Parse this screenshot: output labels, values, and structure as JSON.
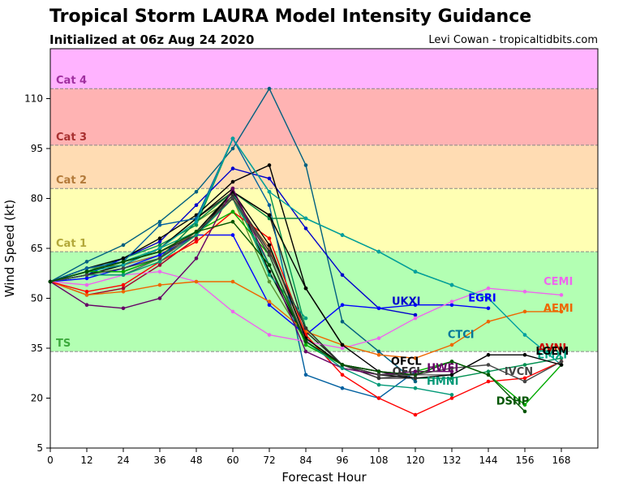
{
  "header": {
    "title": "Tropical Storm LAURA Model Intensity Guidance",
    "subtitle": "Initialized at 06z Aug 24 2020",
    "credit": "Levi Cowan - tropicaltidbits.com"
  },
  "chart_data": {
    "type": "line",
    "title": "Tropical Storm LAURA Model Intensity Guidance",
    "subtitle": "Initialized at 06z Aug 24 2020",
    "xlabel": "Forecast Hour",
    "ylabel": "Wind Speed (kt)",
    "xlim": [
      0,
      180
    ],
    "ylim": [
      5,
      125
    ],
    "xticks": [
      0,
      12,
      24,
      36,
      48,
      60,
      72,
      84,
      96,
      108,
      120,
      132,
      144,
      156,
      168
    ],
    "yticks": [
      5,
      20,
      35,
      50,
      65,
      80,
      95,
      110
    ],
    "grid": false,
    "bands": [
      {
        "label": "TS",
        "from": 34,
        "to": 64,
        "fill": "#b3ffb3",
        "text_color": "#3daa3d"
      },
      {
        "label": "Cat 1",
        "from": 64,
        "to": 83,
        "fill": "#ffffb3",
        "text_color": "#b3a83a"
      },
      {
        "label": "Cat 2",
        "from": 83,
        "to": 96,
        "fill": "#ffdcb3",
        "text_color": "#b37a3a"
      },
      {
        "label": "Cat 3",
        "from": 96,
        "to": 113,
        "fill": "#ffb3b3",
        "text_color": "#a83030"
      },
      {
        "label": "Cat 4",
        "from": 113,
        "to": 125,
        "fill": "#ffb3ff",
        "text_color": "#a030a0"
      }
    ],
    "series": [
      {
        "name": "",
        "color": "#006080",
        "x": [
          0,
          12,
          24,
          36,
          48,
          60,
          72,
          84,
          96,
          108,
          120
        ],
        "y": [
          55,
          61,
          66,
          73,
          82,
          95,
          113,
          90,
          43,
          34,
          25
        ]
      },
      {
        "name": "",
        "color": "#009050",
        "x": [
          0,
          12,
          24,
          36,
          48,
          60,
          72,
          84,
          96,
          108,
          120,
          132,
          144,
          156,
          168
        ],
        "y": [
          55,
          58,
          62,
          66,
          72,
          98,
          82,
          41,
          30,
          28,
          26,
          26,
          28,
          30,
          32
        ]
      },
      {
        "name": "",
        "color": "#5a9030",
        "x": [
          0,
          12,
          24,
          36,
          48,
          60,
          72,
          84,
          96
        ],
        "y": [
          55,
          59,
          60,
          65,
          73,
          80,
          55,
          37,
          30
        ]
      },
      {
        "name": "",
        "color": "#a06040",
        "x": [
          0,
          12,
          24,
          36,
          48,
          60,
          72,
          84,
          96,
          108,
          120
        ],
        "y": [
          55,
          57,
          60,
          63,
          70,
          80,
          65,
          38,
          30,
          27,
          27
        ]
      },
      {
        "name": "UKXI",
        "color": "#0000cc",
        "x": [
          0,
          12,
          24,
          36,
          48,
          60,
          72,
          84,
          96,
          108,
          120
        ],
        "y": [
          55,
          57,
          62,
          67,
          78,
          89,
          86,
          71,
          57,
          47,
          45
        ]
      },
      {
        "name": "EGRI",
        "color": "#0000ff",
        "x": [
          0,
          12,
          24,
          36,
          48,
          60,
          72,
          84,
          96,
          108,
          120,
          132,
          144
        ],
        "y": [
          55,
          56,
          59,
          63,
          69,
          69,
          48,
          39,
          48,
          47,
          48,
          48,
          47
        ]
      },
      {
        "name": "",
        "color": "#000000",
        "x": [
          0,
          12,
          24,
          36,
          48,
          60,
          72,
          84,
          96
        ],
        "y": [
          55,
          59,
          62,
          68,
          75,
          85,
          90,
          53,
          36
        ]
      },
      {
        "name": "",
        "color": "#202020",
        "x": [
          0,
          12,
          24,
          36,
          48,
          60,
          72,
          84,
          96,
          108
        ],
        "y": [
          55,
          58,
          60,
          65,
          74,
          82,
          75,
          40,
          30,
          28
        ]
      },
      {
        "name": "",
        "color": "#000000",
        "x": [
          0,
          12,
          24,
          36,
          48,
          60,
          72,
          84,
          96,
          108,
          120
        ],
        "y": [
          55,
          57,
          60,
          65,
          74,
          83,
          58,
          37,
          30,
          28,
          26
        ]
      },
      {
        "name": "",
        "color": "#00a080",
        "x": [
          0,
          12,
          24,
          36,
          48,
          60,
          72,
          84
        ],
        "y": [
          55,
          58,
          61,
          65,
          70,
          82,
          57,
          44
        ]
      },
      {
        "name": "",
        "color": "#0060a0",
        "x": [
          0,
          12,
          24,
          36,
          48,
          60,
          72,
          84,
          96,
          108,
          120
        ],
        "y": [
          55,
          59,
          61,
          72,
          74,
          98,
          78,
          27,
          23,
          20,
          28
        ]
      },
      {
        "name": "",
        "color": "#a00030",
        "x": [
          0,
          12,
          24,
          36,
          48
        ],
        "y": [
          55,
          51,
          53,
          60,
          68
        ]
      },
      {
        "name": "",
        "color": "#606060",
        "x": [
          0,
          12,
          24,
          36,
          48,
          60,
          72,
          84,
          96,
          108,
          120,
          132
        ],
        "y": [
          55,
          57,
          57,
          62,
          69,
          81,
          63,
          37,
          30,
          26,
          27,
          27
        ]
      },
      {
        "name": "",
        "color": "#008040",
        "x": [
          0,
          12,
          24,
          36,
          48,
          60,
          72,
          84,
          96,
          108,
          120,
          132
        ],
        "y": [
          55,
          58,
          58,
          62,
          73,
          82,
          74,
          74,
          69,
          64,
          58,
          54
        ]
      },
      {
        "name": "CEMI",
        "color": "#ee66ee",
        "x": [
          0,
          12,
          24,
          36,
          48,
          60,
          72,
          84,
          96,
          108,
          120,
          132,
          144,
          156,
          168
        ],
        "y": [
          55,
          54,
          57,
          58,
          55,
          46,
          39,
          37,
          35,
          38,
          44,
          49,
          53,
          52,
          51
        ]
      },
      {
        "name": "AEMI",
        "color": "#ee6600",
        "x": [
          0,
          12,
          24,
          36,
          48,
          60,
          72,
          84,
          96,
          108,
          120,
          132,
          144,
          156,
          168
        ],
        "y": [
          55,
          51,
          52,
          54,
          55,
          55,
          49,
          40,
          36,
          33,
          32,
          36,
          43,
          46,
          46
        ]
      },
      {
        "name": "CTCI",
        "color": "#00a0a0",
        "x": [
          0,
          12,
          24,
          36,
          48,
          60,
          72,
          84,
          96,
          108,
          120,
          132,
          144,
          156,
          168
        ],
        "y": [
          55,
          58,
          60,
          65,
          73,
          98,
          82,
          74,
          69,
          64,
          58,
          54,
          50,
          39,
          30
        ]
      },
      {
        "name": "AVNI",
        "color": "#ff0000",
        "x": [
          0,
          12,
          24,
          36,
          48,
          60,
          72,
          84,
          96,
          108,
          120,
          132,
          144,
          156,
          168
        ],
        "y": [
          55,
          52,
          54,
          61,
          67,
          76,
          68,
          39,
          27,
          20,
          15,
          20,
          25,
          26,
          31
        ]
      },
      {
        "name": "EMXI",
        "color": "#00aa00",
        "x": [
          0,
          12,
          24,
          36,
          48,
          60,
          72,
          84,
          96,
          108,
          120,
          132,
          144,
          156,
          168
        ],
        "y": [
          55,
          58,
          58,
          62,
          70,
          76,
          63,
          36,
          30,
          27,
          28,
          31,
          27,
          18,
          30
        ]
      },
      {
        "name": "LGEM",
        "color": "#000000",
        "x": [
          0,
          12,
          24,
          36,
          48,
          60,
          72,
          84,
          96,
          108,
          120,
          132,
          144,
          156,
          168
        ],
        "y": [
          55,
          58,
          61,
          64,
          70,
          82,
          66,
          38,
          30,
          27,
          26,
          27,
          33,
          33,
          30
        ]
      },
      {
        "name": "OFCL",
        "color": "#000000",
        "x": [
          0,
          12,
          24,
          36,
          48,
          60,
          72,
          84,
          96,
          108,
          120
        ],
        "y": [
          55,
          58,
          61,
          64,
          69,
          82,
          75,
          53,
          36,
          28,
          27
        ]
      },
      {
        "name": "OFCI",
        "color": "#333333",
        "x": [
          0,
          12,
          24,
          36,
          48,
          60,
          72,
          84,
          96,
          108,
          120
        ],
        "y": [
          55,
          58,
          61,
          64,
          69,
          81,
          64,
          41,
          30,
          26,
          26
        ]
      },
      {
        "name": "HWFI",
        "color": "#660066",
        "x": [
          0,
          12,
          24,
          36,
          48,
          60,
          72,
          84,
          96,
          108,
          120,
          132
        ],
        "y": [
          55,
          48,
          47,
          50,
          62,
          83,
          60,
          34,
          29,
          27,
          28,
          28
        ]
      },
      {
        "name": "HMNI",
        "color": "#009977",
        "x": [
          0,
          12,
          24,
          36,
          48,
          60,
          72,
          84,
          96,
          108,
          120,
          132
        ],
        "y": [
          55,
          57,
          57,
          61,
          69,
          80,
          60,
          37,
          29,
          24,
          23,
          21
        ]
      },
      {
        "name": "IVCN",
        "color": "#444444",
        "x": [
          0,
          12,
          24,
          36,
          48,
          60,
          72,
          84,
          96,
          108,
          120,
          132,
          144,
          156,
          168
        ],
        "y": [
          55,
          57,
          59,
          62,
          70,
          80,
          63,
          37,
          30,
          27,
          27,
          29,
          30,
          25,
          31
        ]
      },
      {
        "name": "DSHP",
        "color": "#005500",
        "x": [
          0,
          12,
          24,
          36,
          48,
          60,
          72,
          84,
          96,
          108,
          120,
          132,
          144,
          156
        ],
        "y": [
          55,
          58,
          61,
          64,
          70,
          73,
          60,
          37,
          30,
          28,
          27,
          31,
          27,
          16
        ]
      }
    ],
    "labels": [
      {
        "text": "CEMI",
        "x": 167,
        "y": 54,
        "color": "#ee66ee"
      },
      {
        "text": "AEMI",
        "x": 167,
        "y": 46,
        "color": "#ee6600"
      },
      {
        "text": "UKXI",
        "x": 117,
        "y": 48,
        "color": "#0000cc"
      },
      {
        "text": "EGRI",
        "x": 142,
        "y": 49,
        "color": "#0000ff"
      },
      {
        "text": "CTCI",
        "x": 135,
        "y": 38,
        "color": "#007799"
      },
      {
        "text": "AVNI",
        "x": 165,
        "y": 34,
        "color": "#cc0000"
      },
      {
        "text": "EMXI",
        "x": 165,
        "y": 32,
        "color": "#00aa88"
      },
      {
        "text": "LGEM",
        "x": 165,
        "y": 33,
        "color": "#000000"
      },
      {
        "text": "OFCL",
        "x": 117,
        "y": 30,
        "color": "#000000"
      },
      {
        "text": "OFCI",
        "x": 117,
        "y": 27,
        "color": "#333333"
      },
      {
        "text": "HWFI",
        "x": 129,
        "y": 28,
        "color": "#660066"
      },
      {
        "text": "HMNI",
        "x": 129,
        "y": 24,
        "color": "#009977"
      },
      {
        "text": "IVCN",
        "x": 154,
        "y": 27,
        "color": "#444444"
      },
      {
        "text": "DSHP",
        "x": 152,
        "y": 18,
        "color": "#005500"
      }
    ]
  }
}
